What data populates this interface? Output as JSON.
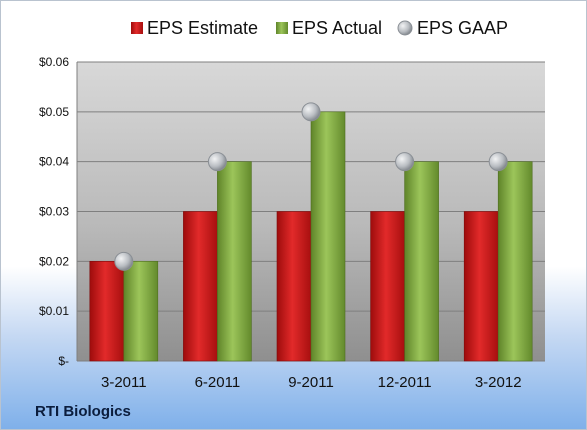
{
  "company": "RTI Biologics",
  "chart_data": {
    "type": "bar",
    "categories": [
      "3-2011",
      "6-2011",
      "9-2011",
      "12-2011",
      "3-2012"
    ],
    "series": [
      {
        "name": "EPS Estimate",
        "kind": "bar",
        "color": "#d11a1a",
        "values": [
          0.02,
          0.03,
          0.03,
          0.03,
          0.03
        ]
      },
      {
        "name": "EPS Actual",
        "kind": "bar",
        "color": "#8db54b",
        "values": [
          0.02,
          0.04,
          0.05,
          0.04,
          0.04
        ]
      },
      {
        "name": "EPS GAAP",
        "kind": "marker",
        "color": "#b7bcc2",
        "values": [
          0.02,
          0.04,
          0.05,
          0.04,
          0.04
        ]
      }
    ],
    "ylim": [
      0,
      0.06
    ],
    "yticks": [
      {
        "value": 0,
        "label": "$-"
      },
      {
        "value": 0.01,
        "label": "$0.01"
      },
      {
        "value": 0.02,
        "label": "$0.02"
      },
      {
        "value": 0.03,
        "label": "$0.03"
      },
      {
        "value": 0.04,
        "label": "$0.04"
      },
      {
        "value": 0.05,
        "label": "$0.05"
      },
      {
        "value": 0.06,
        "label": "$0.06"
      }
    ],
    "grid": true,
    "legend_position": "top"
  }
}
